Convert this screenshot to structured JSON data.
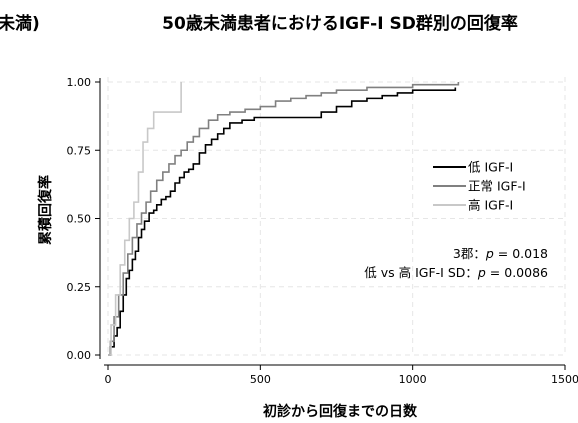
{
  "chart_data": {
    "type": "line",
    "step": true,
    "title": "50歳未満患者におけるIGF-I SD群別の回復率",
    "left_title_fragment": "未満)",
    "xlabel": "初診から回復までの日数",
    "ylabel": "累積回復率",
    "xlim": [
      0,
      1500
    ],
    "ylim": [
      0,
      1.0
    ],
    "x_ticks": [
      0,
      500,
      1000,
      1500
    ],
    "x_tick_labels": [
      "0",
      "500",
      "1000",
      "1500"
    ],
    "y_ticks": [
      0,
      0.25,
      0.5,
      0.75,
      1.0
    ],
    "y_tick_labels": [
      "0.00",
      "0.25",
      "0.50",
      "0.75",
      "1.00"
    ],
    "grid": true,
    "legend_position": "right-middle",
    "series": [
      {
        "name": "低 IGF-I",
        "color": "#000000",
        "x": [
          0,
          8,
          20,
          30,
          40,
          50,
          60,
          70,
          80,
          90,
          100,
          110,
          120,
          135,
          150,
          160,
          175,
          190,
          205,
          220,
          235,
          250,
          265,
          280,
          300,
          320,
          340,
          360,
          380,
          400,
          440,
          480,
          520,
          560,
          600,
          650,
          700,
          750,
          800,
          850,
          900,
          950,
          1000,
          1050,
          1100,
          1140
        ],
        "y": [
          0,
          0.03,
          0.07,
          0.1,
          0.16,
          0.22,
          0.28,
          0.31,
          0.35,
          0.38,
          0.43,
          0.46,
          0.49,
          0.52,
          0.53,
          0.55,
          0.57,
          0.58,
          0.6,
          0.63,
          0.65,
          0.67,
          0.68,
          0.7,
          0.74,
          0.77,
          0.79,
          0.81,
          0.83,
          0.85,
          0.86,
          0.87,
          0.87,
          0.87,
          0.87,
          0.87,
          0.89,
          0.91,
          0.93,
          0.94,
          0.95,
          0.96,
          0.97,
          0.97,
          0.97,
          0.98
        ]
      },
      {
        "name": "正常 IGF-I",
        "color": "#808080",
        "x": [
          0,
          8,
          20,
          35,
          50,
          65,
          80,
          95,
          110,
          125,
          140,
          160,
          180,
          200,
          220,
          240,
          260,
          280,
          300,
          330,
          360,
          400,
          450,
          500,
          550,
          600,
          650,
          700,
          750,
          800,
          850,
          900,
          950,
          1000,
          1100,
          1150
        ],
        "y": [
          0,
          0.05,
          0.14,
          0.22,
          0.3,
          0.37,
          0.43,
          0.48,
          0.52,
          0.56,
          0.6,
          0.64,
          0.67,
          0.7,
          0.73,
          0.75,
          0.78,
          0.8,
          0.83,
          0.86,
          0.88,
          0.89,
          0.9,
          0.91,
          0.93,
          0.94,
          0.95,
          0.96,
          0.97,
          0.97,
          0.98,
          0.98,
          0.98,
          0.99,
          0.99,
          1.0
        ]
      },
      {
        "name": "高 IGF-I",
        "color": "#c8c8c8",
        "x": [
          0,
          10,
          25,
          40,
          55,
          70,
          85,
          100,
          115,
          130,
          150,
          180,
          210,
          240
        ],
        "y": [
          0,
          0.11,
          0.22,
          0.33,
          0.42,
          0.5,
          0.56,
          0.67,
          0.78,
          0.83,
          0.89,
          0.89,
          0.89,
          1.0
        ]
      }
    ],
    "annotations": [
      {
        "prefix": "3郡：",
        "p_label": "p",
        "value": " = 0.018"
      },
      {
        "prefix": "低 vs 高 IGF-I SD：",
        "p_label": "p",
        "value": " = 0.0086"
      }
    ]
  }
}
